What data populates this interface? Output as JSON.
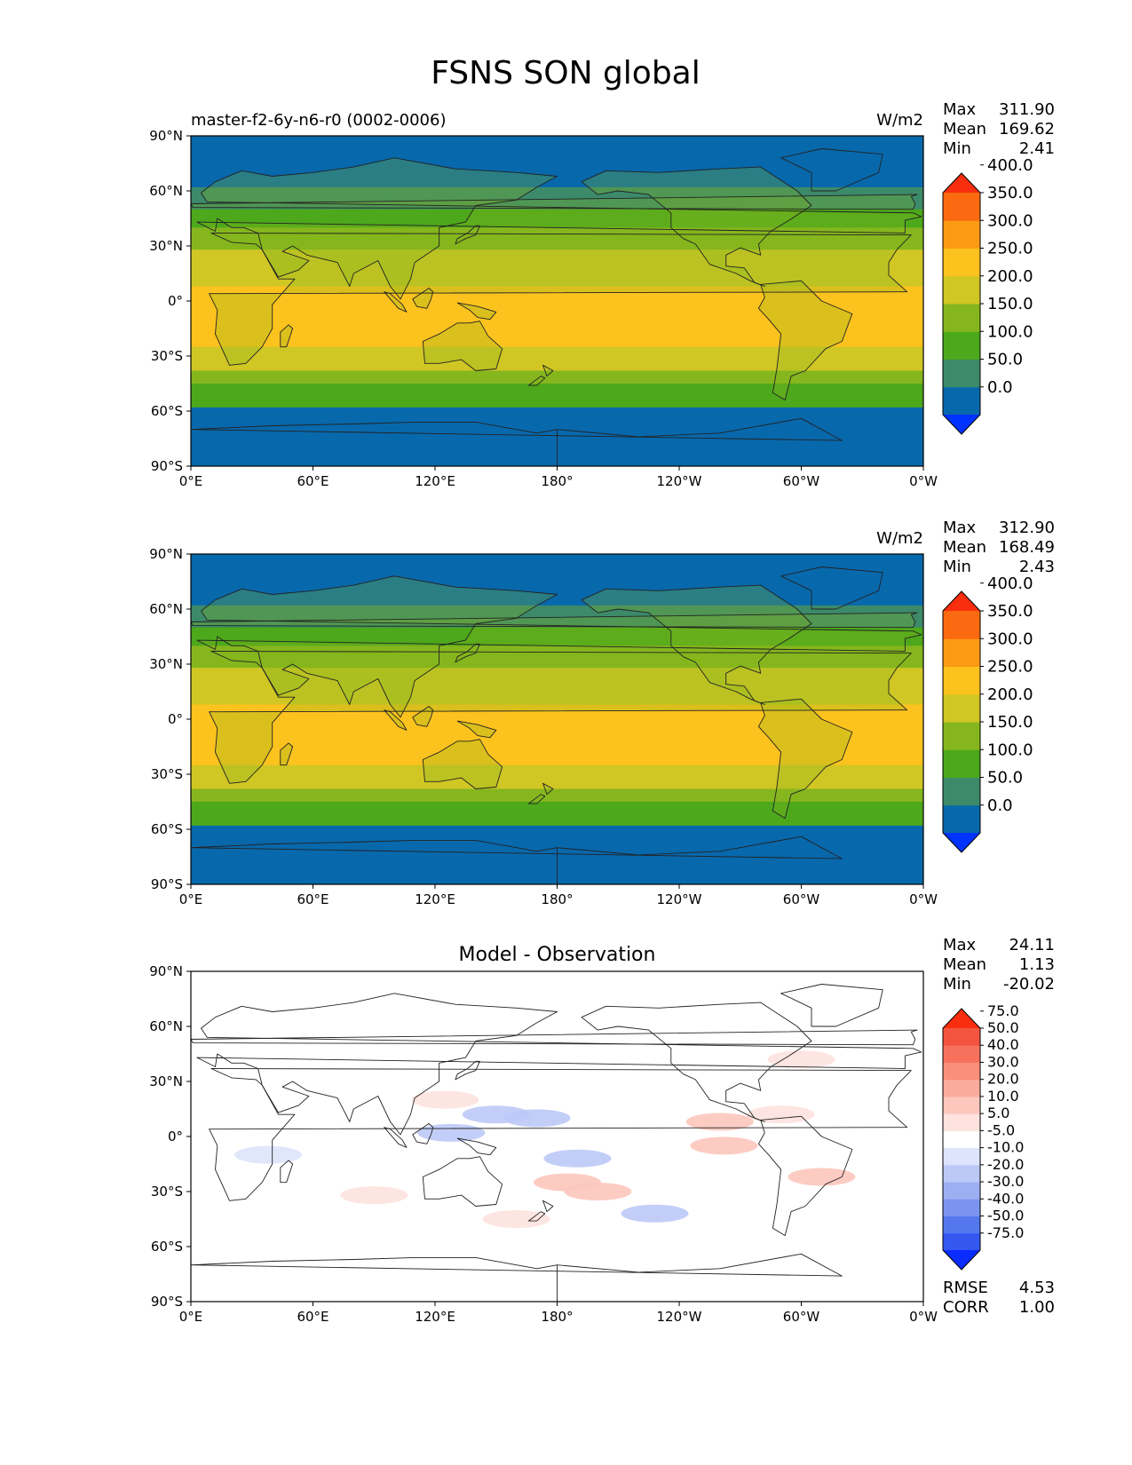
{
  "title": "FSNS SON global",
  "lon_ticks": [
    "0°E",
    "60°E",
    "120°E",
    "180°",
    "120°W",
    "60°W",
    "0°W"
  ],
  "lat_ticks": [
    "90°N",
    "60°N",
    "30°N",
    "0°",
    "30°S",
    "60°S",
    "90°S"
  ],
  "stat_labels": {
    "max": "Max",
    "mean": "Mean",
    "min": "Min",
    "rmse": "RMSE",
    "corr": "CORR"
  },
  "colors": {
    "abs_levels": [
      "#0033ff",
      "#0868ac",
      "#3c8a6a",
      "#4da81c",
      "#85b61e",
      "#d0c624",
      "#fcc21e",
      "#fc9a14",
      "#fb6a10",
      "#f82e0e"
    ],
    "diff_levels": [
      "#0a2cff",
      "#3357ef",
      "#5577ee",
      "#7a94f0",
      "#9daff3",
      "#bcc9f7",
      "#dde4fb",
      "#ffffff",
      "#fde2de",
      "#fcc7bd",
      "#fbab9b",
      "#f98f7c",
      "#f6725d",
      "#f3543f",
      "#f82e0e"
    ],
    "land_outline": "#222222"
  },
  "panels": [
    {
      "id": "test",
      "left_title": "master-f2-6y-n6-r0 (0002-0006)",
      "center_title": "",
      "units": "W/m2",
      "stats": {
        "max": "311.90",
        "mean": "169.62",
        "min": "2.41"
      },
      "colorbar_ticks": [
        "0.0",
        "50.0",
        "100.0",
        "150.0",
        "200.0",
        "250.0",
        "300.0",
        "350.0",
        "400.0"
      ],
      "chart_data": {
        "type": "heatmap",
        "field": "Surface net shortwave flux (contour map)",
        "xlim": [
          0,
          360
        ],
        "ylim": [
          -90,
          90
        ],
        "levels": [
          0,
          50,
          100,
          150,
          200,
          250,
          300,
          350,
          400
        ],
        "extend": "both",
        "zonal_band_levels_north_to_south": [
          {
            "lat": [
              90,
              62
            ],
            "range": "0-50"
          },
          {
            "lat": [
              62,
              50
            ],
            "range": "50-100"
          },
          {
            "lat": [
              50,
              40
            ],
            "range": "100-150"
          },
          {
            "lat": [
              40,
              28
            ],
            "range": "150-200"
          },
          {
            "lat": [
              28,
              8
            ],
            "range": "200-250"
          },
          {
            "lat": [
              8,
              -25
            ],
            "range": "250-300"
          },
          {
            "lat": [
              -25,
              -38
            ],
            "range": "200-250"
          },
          {
            "lat": [
              -38,
              -45
            ],
            "range": "150-200"
          },
          {
            "lat": [
              -45,
              -58
            ],
            "range": "100-150"
          },
          {
            "lat": [
              -58,
              -90
            ],
            "range": "0-50"
          }
        ]
      }
    },
    {
      "id": "reference",
      "left_title": "",
      "center_title": "",
      "units": "W/m2",
      "stats": {
        "max": "312.90",
        "mean": "168.49",
        "min": "2.43"
      },
      "colorbar_ticks": [
        "0.0",
        "50.0",
        "100.0",
        "150.0",
        "200.0",
        "250.0",
        "300.0",
        "350.0",
        "400.0"
      ],
      "chart_data": {
        "type": "heatmap",
        "field": "Surface net shortwave flux (contour map)",
        "xlim": [
          0,
          360
        ],
        "ylim": [
          -90,
          90
        ],
        "levels": [
          0,
          50,
          100,
          150,
          200,
          250,
          300,
          350,
          400
        ],
        "extend": "both",
        "zonal_band_levels_north_to_south": [
          {
            "lat": [
              90,
              62
            ],
            "range": "0-50"
          },
          {
            "lat": [
              62,
              50
            ],
            "range": "50-100"
          },
          {
            "lat": [
              50,
              40
            ],
            "range": "100-150"
          },
          {
            "lat": [
              40,
              28
            ],
            "range": "150-200"
          },
          {
            "lat": [
              28,
              8
            ],
            "range": "200-250"
          },
          {
            "lat": [
              8,
              -25
            ],
            "range": "250-300"
          },
          {
            "lat": [
              -25,
              -38
            ],
            "range": "200-250"
          },
          {
            "lat": [
              -38,
              -45
            ],
            "range": "150-200"
          },
          {
            "lat": [
              -45,
              -58
            ],
            "range": "100-150"
          },
          {
            "lat": [
              -58,
              -90
            ],
            "range": "0-50"
          }
        ]
      }
    },
    {
      "id": "difference",
      "left_title": "",
      "center_title": "Model - Observation",
      "units": "",
      "stats": {
        "max": "24.11",
        "mean": "1.13",
        "min": "-20.02",
        "rmse": "4.53",
        "corr": "1.00"
      },
      "colorbar_ticks": [
        "-75.0",
        "-50.0",
        "-40.0",
        "-30.0",
        "-20.0",
        "-10.0",
        "-5.0",
        "5.0",
        "10.0",
        "20.0",
        "30.0",
        "40.0",
        "50.0",
        "75.0"
      ],
      "chart_data": {
        "type": "heatmap",
        "field": "Model minus observation (contour map)",
        "xlim": [
          0,
          360
        ],
        "ylim": [
          -90,
          90
        ],
        "levels": [
          -75,
          -50,
          -40,
          -30,
          -20,
          -10,
          -5,
          5,
          10,
          20,
          30,
          40,
          50,
          75
        ],
        "extend": "both",
        "anomaly_patches": [
          {
            "lon": 150,
            "lat": 12,
            "value": -10
          },
          {
            "lon": 170,
            "lat": 10,
            "value": -10
          },
          {
            "lon": 190,
            "lat": -12,
            "value": -10
          },
          {
            "lon": 228,
            "lat": -42,
            "value": -10
          },
          {
            "lon": 128,
            "lat": 2,
            "value": -10
          },
          {
            "lon": 38,
            "lat": -10,
            "value": -5
          },
          {
            "lon": 185,
            "lat": -25,
            "value": 10
          },
          {
            "lon": 260,
            "lat": 8,
            "value": 10
          },
          {
            "lon": 262,
            "lat": -5,
            "value": 10
          },
          {
            "lon": 310,
            "lat": -22,
            "value": 10
          },
          {
            "lon": 200,
            "lat": -30,
            "value": 10
          },
          {
            "lon": 290,
            "lat": 12,
            "value": 5
          },
          {
            "lon": 125,
            "lat": 20,
            "value": 5
          },
          {
            "lon": 300,
            "lat": 42,
            "value": 5
          },
          {
            "lon": 90,
            "lat": -32,
            "value": 5
          },
          {
            "lon": 160,
            "lat": -45,
            "value": 5
          }
        ]
      }
    }
  ]
}
